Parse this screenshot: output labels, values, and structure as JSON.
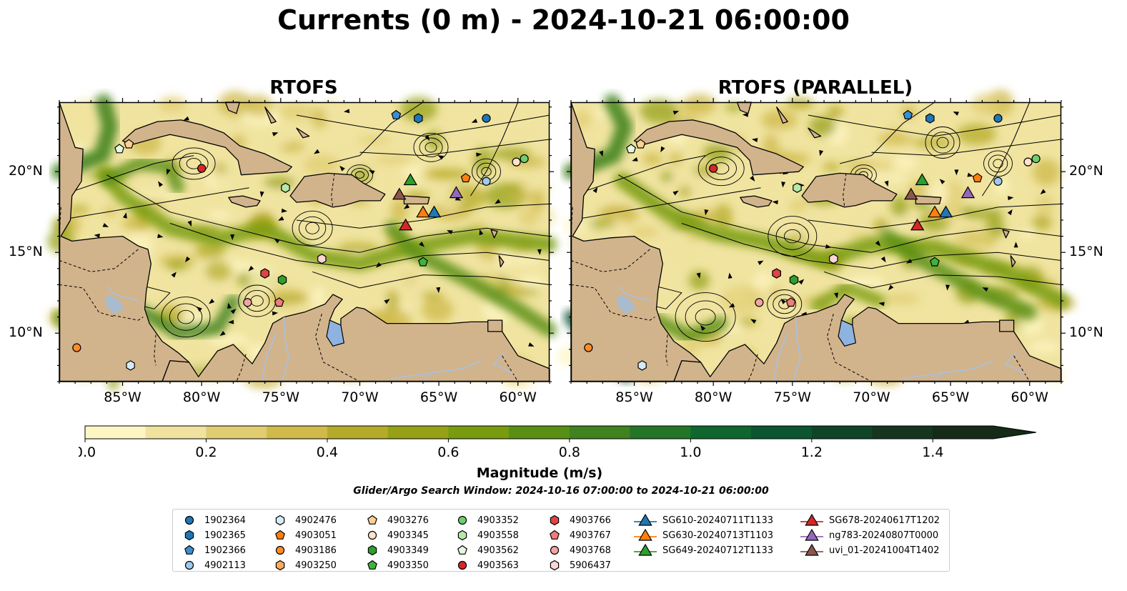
{
  "title": "Currents (0 m) - 2024-10-21 06:00:00",
  "panels": [
    {
      "title": "RTOFS",
      "variant": "rtofs"
    },
    {
      "title": "RTOFS (PARALLEL)",
      "variant": "parallel"
    }
  ],
  "map_extent": {
    "lon": [
      -89,
      -58
    ],
    "lat": [
      7,
      24.3
    ]
  },
  "lon_ticks": [
    "85°W",
    "80°W",
    "75°W",
    "70°W",
    "65°W",
    "60°W"
  ],
  "lat_ticks": [
    "20°N",
    "15°N",
    "10°N"
  ],
  "colorbar": {
    "label": "Magnitude (m/s)",
    "ticks": [
      "0.0",
      "0.2",
      "0.4",
      "0.6",
      "0.8",
      "1.0",
      "1.2",
      "1.4"
    ],
    "range": [
      0,
      1.5
    ],
    "colors": [
      "#fdf6c3",
      "#f0e3a0",
      "#e0cd72",
      "#cfba4b",
      "#b5ab2a",
      "#97a117",
      "#789b10",
      "#5a8f16",
      "#3f821f",
      "#237527",
      "#10662f",
      "#0b5530",
      "#0f4427",
      "#15351f",
      "#162a18"
    ]
  },
  "search_window": "Glider/Argo Search Window: 2024-10-16 07:00:00 to 2024-10-21 06:00:00",
  "colors": {
    "land": "#d2b48c",
    "lake": "#8fb3e0",
    "river": "#a7c1e2"
  },
  "legend": [
    {
      "label": "1902364",
      "marker": "circle",
      "color": "#1f77b4"
    },
    {
      "label": "1902365",
      "marker": "hexagon",
      "color": "#1f77b4"
    },
    {
      "label": "1902366",
      "marker": "pentagon",
      "color": "#3a8fd0"
    },
    {
      "label": "4902113",
      "marker": "circle",
      "color": "#9fcaea"
    },
    {
      "label": "4902476",
      "marker": "hexagon",
      "color": "#d6ebf7"
    },
    {
      "label": "4903051",
      "marker": "pentagon",
      "color": "#ff7f0e"
    },
    {
      "label": "4903186",
      "marker": "circle",
      "color": "#ff8c28"
    },
    {
      "label": "4903250",
      "marker": "hexagon",
      "color": "#ffab5e"
    },
    {
      "label": "4903276",
      "marker": "pentagon",
      "color": "#ffcf94"
    },
    {
      "label": "4903345",
      "marker": "circle",
      "color": "#ffe3cc"
    },
    {
      "label": "4903349",
      "marker": "hexagon",
      "color": "#2ca02c"
    },
    {
      "label": "4903350",
      "marker": "pentagon",
      "color": "#3cb43c"
    },
    {
      "label": "4903352",
      "marker": "circle",
      "color": "#6fcf6f"
    },
    {
      "label": "4903558",
      "marker": "hexagon",
      "color": "#b6e8a8"
    },
    {
      "label": "4903562",
      "marker": "pentagon",
      "color": "#e6f8df"
    },
    {
      "label": "4903563",
      "marker": "circle",
      "color": "#d62728"
    },
    {
      "label": "4903766",
      "marker": "hexagon",
      "color": "#e04444"
    },
    {
      "label": "4903767",
      "marker": "pentagon",
      "color": "#f07c7c"
    },
    {
      "label": "4903768",
      "marker": "circle",
      "color": "#f4a3a3"
    },
    {
      "label": "5906437",
      "marker": "hexagon",
      "color": "#fcd6d6"
    },
    {
      "label": "SG610-20240711T1133",
      "marker": "triangle",
      "color": "#1f77b4"
    },
    {
      "label": "SG630-20240713T1103",
      "marker": "triangle",
      "color": "#ff7f0e"
    },
    {
      "label": "SG649-20240712T1133",
      "marker": "triangle",
      "color": "#2ca02c"
    },
    {
      "label": "SG678-20240617T1202",
      "marker": "triangle",
      "color": "#d62728"
    },
    {
      "label": "ng783-20240807T0000",
      "marker": "triangle",
      "color": "#9467bd"
    },
    {
      "label": "uvi_01-20241004T1402",
      "marker": "triangle",
      "color": "#8c564b"
    }
  ],
  "observations": [
    {
      "id": "1902364",
      "lon": -62,
      "lat": 23.3
    },
    {
      "id": "1902365",
      "lon": -66.3,
      "lat": 23.3
    },
    {
      "id": "1902366",
      "lon": -67.7,
      "lat": 23.5
    },
    {
      "id": "4902113",
      "lon": -62,
      "lat": 19.4
    },
    {
      "id": "4902476",
      "lon": -84.5,
      "lat": 8.0
    },
    {
      "id": "4903051",
      "lon": -63.3,
      "lat": 19.6
    },
    {
      "id": "4903186",
      "lon": -87.9,
      "lat": 9.1
    },
    {
      "id": "4903250",
      "lon": -76,
      "lat": 13.7
    },
    {
      "id": "4903276",
      "lon": -84.6,
      "lat": 21.7
    },
    {
      "id": "4903345",
      "lon": -60.1,
      "lat": 20.6
    },
    {
      "id": "4903349",
      "lon": -74.9,
      "lat": 13.3
    },
    {
      "id": "4903350",
      "lon": -66,
      "lat": 14.4
    },
    {
      "id": "4903352",
      "lon": -59.6,
      "lat": 20.8
    },
    {
      "id": "4903558",
      "lon": -74.7,
      "lat": 19.0
    },
    {
      "id": "4903562",
      "lon": -85.2,
      "lat": 21.4
    },
    {
      "id": "4903563",
      "lon": -80,
      "lat": 20.2
    },
    {
      "id": "4903766",
      "lon": -76,
      "lat": 13.7
    },
    {
      "id": "4903767",
      "lon": -75.1,
      "lat": 11.9
    },
    {
      "id": "4903768",
      "lon": -77.1,
      "lat": 11.9
    },
    {
      "id": "5906437",
      "lon": -72.4,
      "lat": 14.6
    },
    {
      "id": "SG610-20240711T1133",
      "lon": -65.3,
      "lat": 17.5
    },
    {
      "id": "SG630-20240713T1103",
      "lon": -66,
      "lat": 17.5
    },
    {
      "id": "SG649-20240712T1133",
      "lon": -66.8,
      "lat": 19.5
    },
    {
      "id": "SG678-20240617T1202",
      "lon": -67.1,
      "lat": 16.7
    },
    {
      "id": "ng783-20240807T0000",
      "lon": -63.9,
      "lat": 18.7
    },
    {
      "id": "uvi_01-20241004T1402",
      "lon": -67.5,
      "lat": 18.6
    }
  ]
}
